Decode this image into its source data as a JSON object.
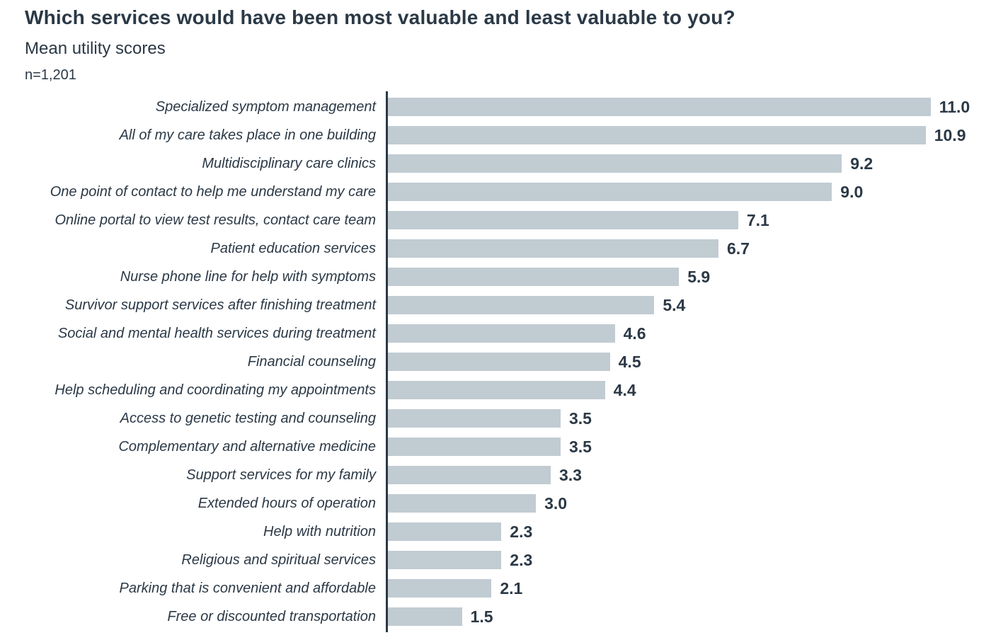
{
  "chart_data": {
    "type": "bar",
    "orientation": "horizontal",
    "title": "Which services would have been most valuable and least valuable to you?",
    "subtitle": "Mean utility scores",
    "sample_note": "n=1,201",
    "categories": [
      "Specialized symptom management",
      "All of my care takes place in one building",
      "Multidisciplinary care clinics",
      "One point of contact to help me understand my care",
      "Online portal to view test results, contact care team",
      "Patient education services",
      "Nurse phone line for help with symptoms",
      "Survivor support services after finishing treatment",
      "Social and mental health services during treatment",
      "Financial counseling",
      "Help scheduling and coordinating my appointments",
      "Access to genetic testing and counseling",
      "Complementary and alternative medicine",
      "Support services for my family",
      "Extended hours of operation",
      "Help with nutrition",
      "Religious and spiritual services",
      "Parking that is convenient and affordable",
      "Free or discounted transportation"
    ],
    "values": [
      11.0,
      10.9,
      9.2,
      9.0,
      7.1,
      6.7,
      5.9,
      5.4,
      4.6,
      4.5,
      4.4,
      3.5,
      3.5,
      3.3,
      3.0,
      2.3,
      2.3,
      2.1,
      1.5
    ],
    "value_labels": [
      "11.0",
      "10.9",
      "9.2",
      "9.0",
      "7.1",
      "6.7",
      "5.9",
      "5.4",
      "4.6",
      "4.5",
      "4.4",
      "3.5",
      "3.5",
      "3.3",
      "3.0",
      "2.3",
      "2.3",
      "2.1",
      "1.5"
    ],
    "xlabel": "",
    "ylabel": "",
    "xlim": [
      0,
      11.8
    ],
    "grid": false,
    "legend": false,
    "bar_color": "#c1cbd2",
    "text_color": "#2b3946",
    "axis_color": "#2b3946"
  }
}
